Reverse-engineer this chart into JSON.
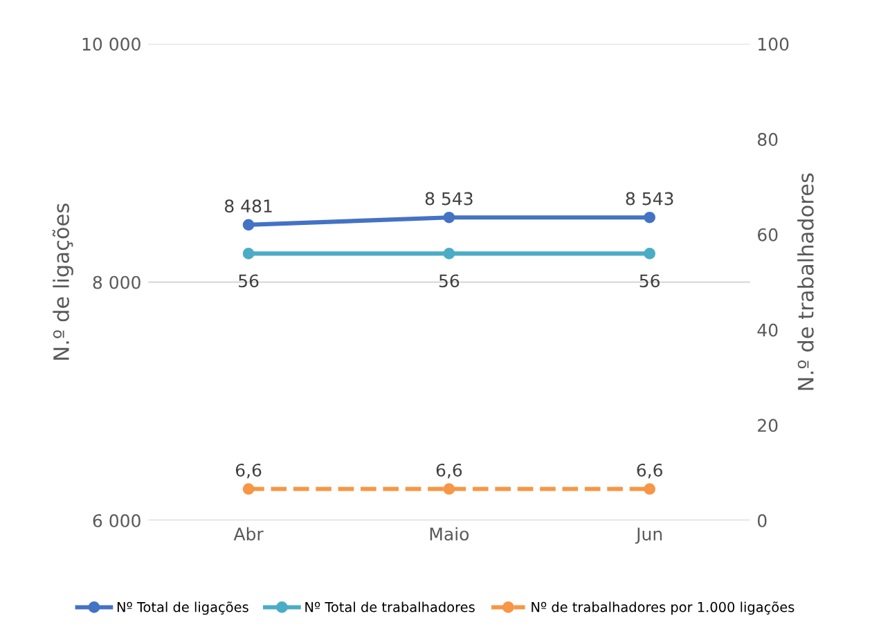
{
  "chart_data": {
    "type": "line",
    "ylabel": "N.º de ligações",
    "y2label": "N.º de trabalhadores",
    "categories": [
      "Abr",
      "Maio",
      "Jun"
    ],
    "ylim": [
      6000,
      10000
    ],
    "yticks": [
      {
        "value": 6000,
        "label": "6 000"
      },
      {
        "value": 8000,
        "label": "8 000"
      },
      {
        "value": 10000,
        "label": "10 000"
      }
    ],
    "y2lim": [
      0,
      100
    ],
    "y2ticks": [
      0,
      20,
      40,
      60,
      80,
      100
    ],
    "grid": "y",
    "legend": "bottom",
    "marker": "circle",
    "series": [
      {
        "name": "Nº Total de ligações",
        "color": "#4472c4",
        "values": [
          8481,
          8543,
          8543
        ],
        "value_labels": [
          "8 481",
          "8 543",
          "8 543"
        ],
        "line_style": "solid"
      },
      {
        "name": "Nº Total de trabalhadores",
        "color": "#4bacc6",
        "values": [
          56,
          56,
          56
        ],
        "value_labels": [
          "56",
          "56",
          "56"
        ],
        "axis": "y2",
        "line_style": "solid"
      },
      {
        "name": "Nº de trabalhadores por 1.000 ligações",
        "color": "#f79646",
        "values": [
          6.6,
          6.6,
          6.6
        ],
        "value_labels": [
          "6,6",
          "6,6",
          "6,6"
        ],
        "axis": "y2",
        "line_style": "dashed"
      }
    ]
  }
}
